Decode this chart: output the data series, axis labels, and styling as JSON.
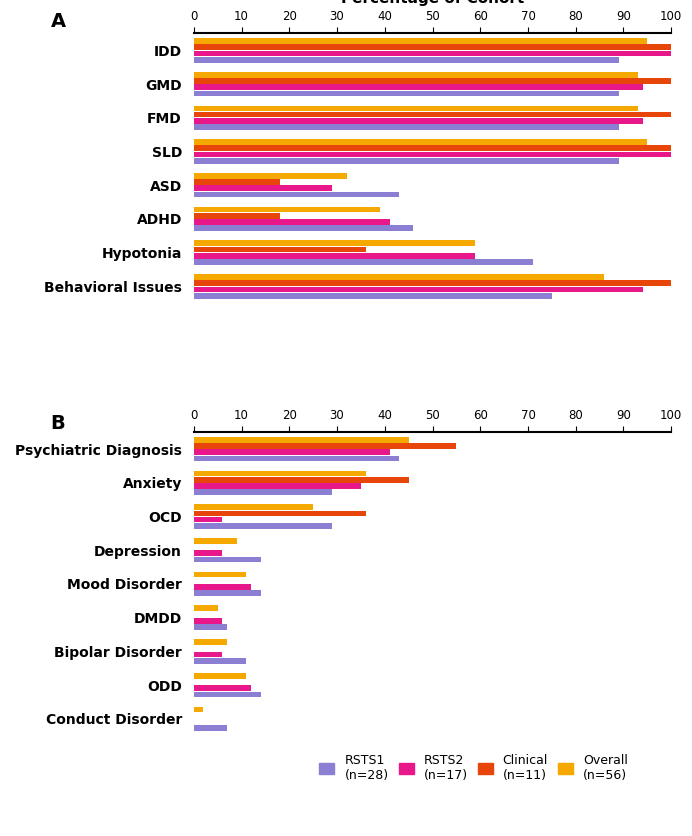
{
  "panel_A": {
    "categories": [
      "IDD",
      "GMD",
      "FMD",
      "SLD",
      "ASD",
      "ADHD",
      "Hypotonia",
      "Behavioral Issues"
    ],
    "series": {
      "RSTS1": [
        89,
        89,
        89,
        89,
        43,
        46,
        71,
        75
      ],
      "RSTS2": [
        100,
        94,
        94,
        100,
        29,
        41,
        59,
        94
      ],
      "Clinical": [
        100,
        100,
        100,
        100,
        18,
        18,
        36,
        100
      ],
      "Overall": [
        95,
        93,
        93,
        95,
        32,
        39,
        59,
        86
      ]
    }
  },
  "panel_B": {
    "categories": [
      "Psychiatric Diagnosis",
      "Anxiety",
      "OCD",
      "Depression",
      "Mood Disorder",
      "DMDD",
      "Bipolar Disorder",
      "ODD",
      "Conduct Disorder"
    ],
    "series": {
      "RSTS1": [
        43,
        29,
        29,
        14,
        14,
        7,
        11,
        14,
        7
      ],
      "RSTS2": [
        41,
        35,
        6,
        6,
        12,
        6,
        6,
        12,
        0
      ],
      "Clinical": [
        55,
        45,
        36,
        0,
        0,
        0,
        0,
        0,
        0
      ],
      "Overall": [
        45,
        36,
        25,
        9,
        11,
        5,
        7,
        11,
        2
      ]
    }
  },
  "colors": {
    "RSTS1": "#8B7FD4",
    "RSTS2": "#E8188A",
    "Clinical": "#E8450A",
    "Overall": "#F5A800"
  },
  "legend_labels": {
    "RSTS1": "RSTS1\n(n=28)",
    "RSTS2": "RSTS2\n(n=17)",
    "Clinical": "Clinical\n(n=11)",
    "Overall": "Overall\n(n=56)"
  },
  "xlabel": "Percentage of Cohort",
  "bar_height": 0.17,
  "bar_spacing": 0.015
}
